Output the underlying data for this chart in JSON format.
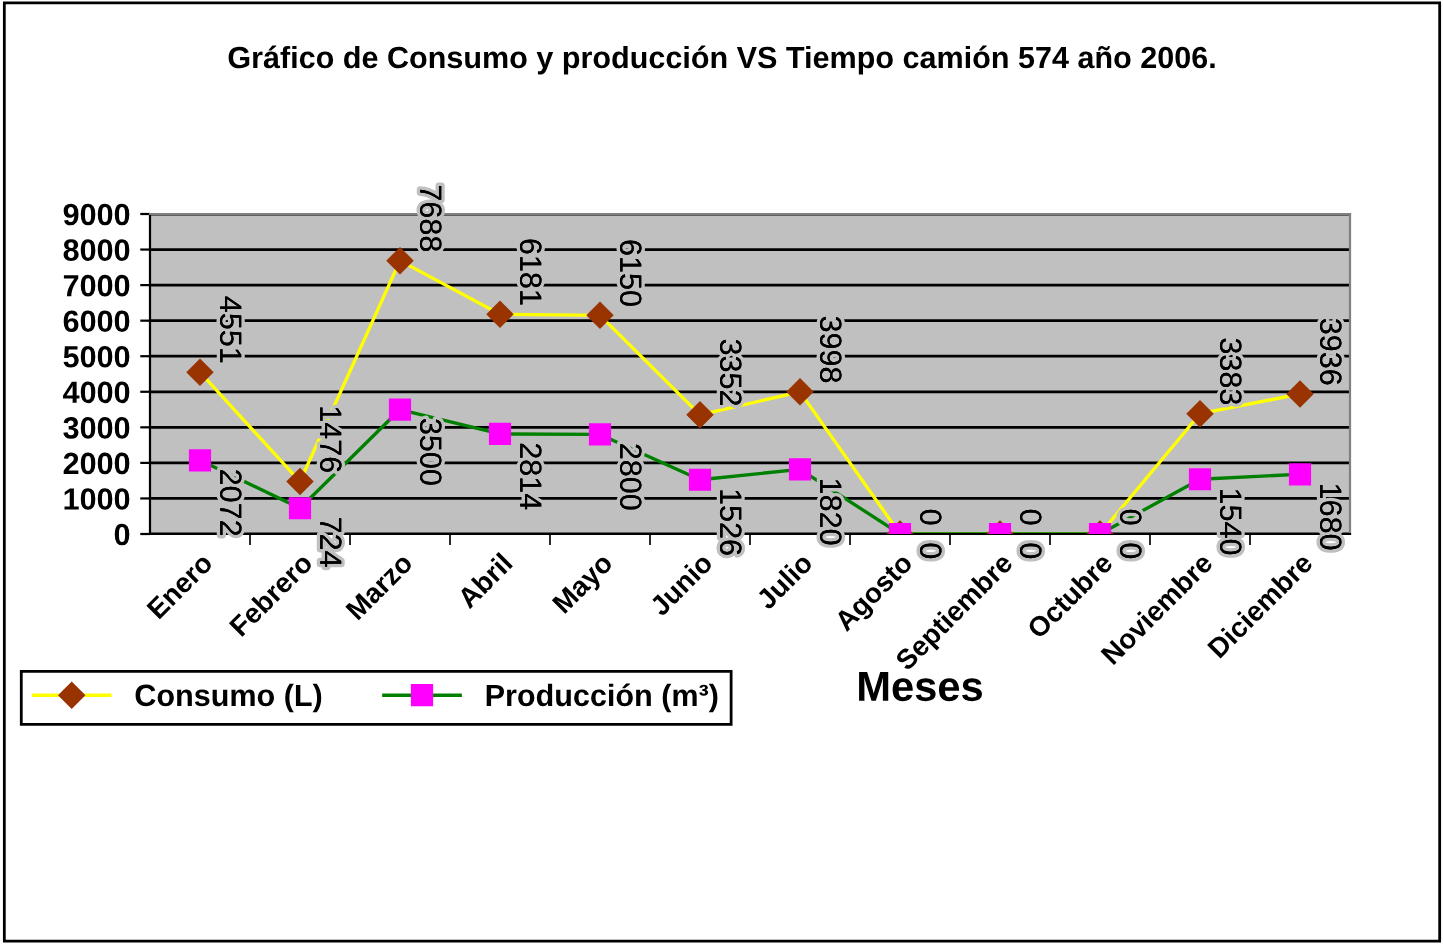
{
  "chart_data": {
    "type": "line",
    "title": "Gráfico de Consumo y producción VS Tiempo camión 574 año 2006.",
    "xlabel": "Meses",
    "categories": [
      "Enero",
      "Febrero",
      "Marzo",
      "Abril",
      "Mayo",
      "Junio",
      "Julio",
      "Agosto",
      "Septiembre",
      "Octubre",
      "Noviembre",
      "Diciembre"
    ],
    "series": [
      {
        "name": "Consumo (L)",
        "color": "#ffff00",
        "colors": [
          "#993300",
          "#993300",
          "#993300",
          "#993300",
          "#993300",
          "#993300",
          "#993300",
          "#993300",
          "#993300",
          "#993300",
          "#993300",
          "#993300"
        ],
        "marker": "diamond",
        "values": [
          4551,
          1476,
          7688,
          6181,
          6150,
          3352,
          3998,
          0,
          0,
          0,
          3383,
          3936
        ]
      },
      {
        "name": "Producción (m³)",
        "color": "#008000",
        "colors": [
          "#ff00ff",
          "#ff00ff",
          "#ff00ff",
          "#ff00ff",
          "#ff00ff",
          "#ff00ff",
          "#ff00ff",
          "#ff00ff",
          "#ff00ff",
          "#ff00ff",
          "#ff00ff",
          "#ff00ff"
        ],
        "marker": "square",
        "values": [
          2072,
          724,
          3500,
          2814,
          2800,
          1526,
          1820,
          0,
          0,
          0,
          1540,
          1680
        ]
      }
    ],
    "ylim": [
      0,
      9000
    ],
    "yticks": [
      0,
      1000,
      2000,
      3000,
      4000,
      5000,
      6000,
      7000,
      8000,
      9000
    ],
    "grid": "y",
    "legend": "bottom left",
    "data_labels": true
  }
}
